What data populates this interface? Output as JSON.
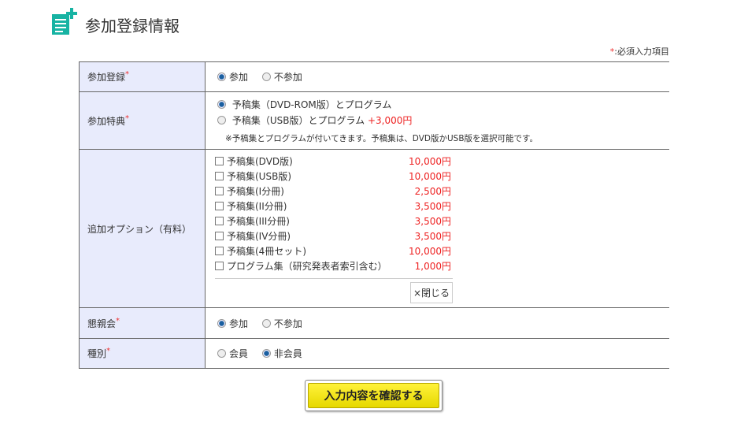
{
  "header": {
    "title": "参加登録情報",
    "icon": "document-plus-icon",
    "accent": "#17b3a3"
  },
  "required_note": {
    "mark": "*",
    "text": ":必須入力項目"
  },
  "rows": {
    "registration": {
      "label": "参加登録",
      "options": [
        "参加",
        "不参加"
      ],
      "selected": 0
    },
    "benefit": {
      "label": "参加特典",
      "options": [
        {
          "text": "予稿集（DVD-ROM版）とプログラム",
          "extra": ""
        },
        {
          "text": "予稿集（USB版）とプログラム",
          "extra": "+3,000円"
        }
      ],
      "selected": 0,
      "note": "※予稿集とプログラムが付いてきます。予稿集は、DVD版かUSB版を選択可能です。"
    },
    "options": {
      "label": "追加オプション（有料）",
      "items": [
        {
          "name": "予稿集(DVD版)",
          "price": "10,000円"
        },
        {
          "name": "予稿集(USB版)",
          "price": "10,000円"
        },
        {
          "name": "予稿集(I分冊)",
          "price": "2,500円"
        },
        {
          "name": "予稿集(II分冊)",
          "price": "3,500円"
        },
        {
          "name": "予稿集(III分冊)",
          "price": "3,500円"
        },
        {
          "name": "予稿集(IV分冊)",
          "price": "3,500円"
        },
        {
          "name": "予稿集(4冊セット)",
          "price": "10,000円"
        },
        {
          "name": "プログラム集（研究発表者索引含む）",
          "price": "1,000円"
        }
      ],
      "close_label": "×閉じる"
    },
    "party": {
      "label": "懇親会",
      "options": [
        "参加",
        "不参加"
      ],
      "selected": 0
    },
    "type": {
      "label": "種別",
      "options": [
        "会員",
        "非会員"
      ],
      "selected": 1
    }
  },
  "submit": {
    "label": "入力内容を確認する"
  }
}
